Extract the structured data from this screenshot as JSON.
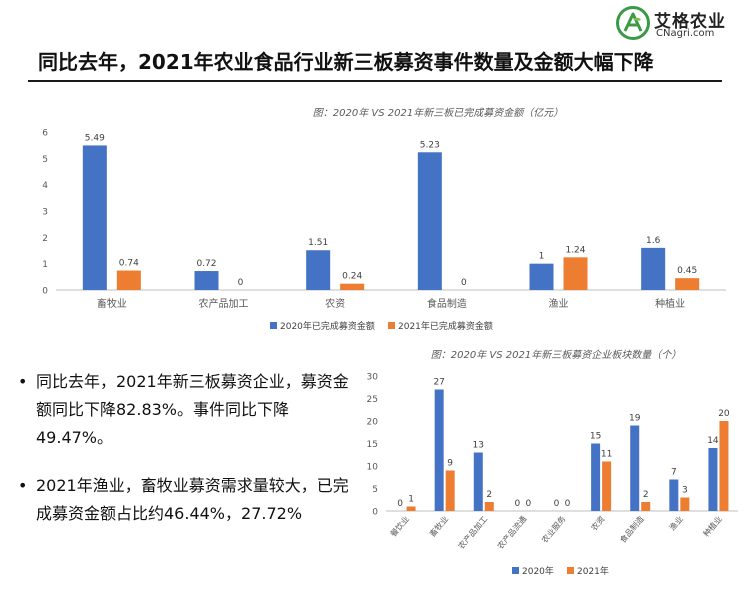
{
  "logo": {
    "name": "艾格农业",
    "domain": "CNagri.com",
    "accent": "#3a9a46"
  },
  "headline": "同比去年，2021年农业食品行业新三板募资事件数量及金额大幅下降",
  "bullets": [
    "同比去年，2021年新三板募资企业，募资金额同比下降82.83%。事件同比下降49.47%。",
    "2021年渔业，畜牧业募资需求量较大，已完成募资金额占比约46.44%，27.72%"
  ],
  "chart_data": [
    {
      "type": "bar",
      "title": "图：2020年 VS 2021年新三板已完成募资金额（亿元）",
      "categories": [
        "畜牧业",
        "农产品加工",
        "农资",
        "食品制造",
        "渔业",
        "种植业"
      ],
      "series": [
        {
          "name": "2020年已完成募资金额",
          "values": [
            5.49,
            0.72,
            1.51,
            5.23,
            1,
            1.6
          ],
          "labels": [
            "5.49",
            "0.72",
            "1.51",
            "5.23",
            "1",
            "1.6"
          ],
          "color": "#4472c4"
        },
        {
          "name": "2021年已完成募资金额",
          "values": [
            0.74,
            0,
            0.24,
            0,
            1.24,
            0.45
          ],
          "labels": [
            "0.74",
            "0",
            "0.24",
            "0",
            "1.24",
            "0.45"
          ],
          "color": "#ed7d31"
        }
      ],
      "ylim": [
        0,
        6
      ],
      "yticks": [
        "0",
        "1",
        "2",
        "3",
        "4",
        "5",
        "6"
      ],
      "grid": false,
      "legend": "bottom"
    },
    {
      "type": "bar",
      "title": "图：2020年 VS 2021年新三板募资企业板块数量（个）",
      "categories": [
        "餐饮业",
        "畜牧业",
        "农产品加工",
        "农产品流通",
        "农业服务",
        "农资",
        "食品制造",
        "渔业",
        "种植业"
      ],
      "series": [
        {
          "name": "2020年",
          "values": [
            0,
            27,
            13,
            0,
            0,
            15,
            19,
            7,
            14
          ],
          "labels": [
            "0",
            "27",
            "13",
            "0",
            "0",
            "15",
            "19",
            "7",
            "14"
          ],
          "color": "#4472c4"
        },
        {
          "name": "2021年",
          "values": [
            1,
            9,
            2,
            0,
            0,
            11,
            2,
            3,
            20
          ],
          "labels": [
            "1",
            "9",
            "2",
            "0",
            "0",
            "11",
            "2",
            "3",
            "20"
          ],
          "color": "#ed7d31"
        }
      ],
      "ylim": [
        0,
        30
      ],
      "yticks": [
        "0",
        "5",
        "10",
        "15",
        "20",
        "25",
        "30"
      ],
      "grid": false,
      "legend": "bottom"
    }
  ]
}
